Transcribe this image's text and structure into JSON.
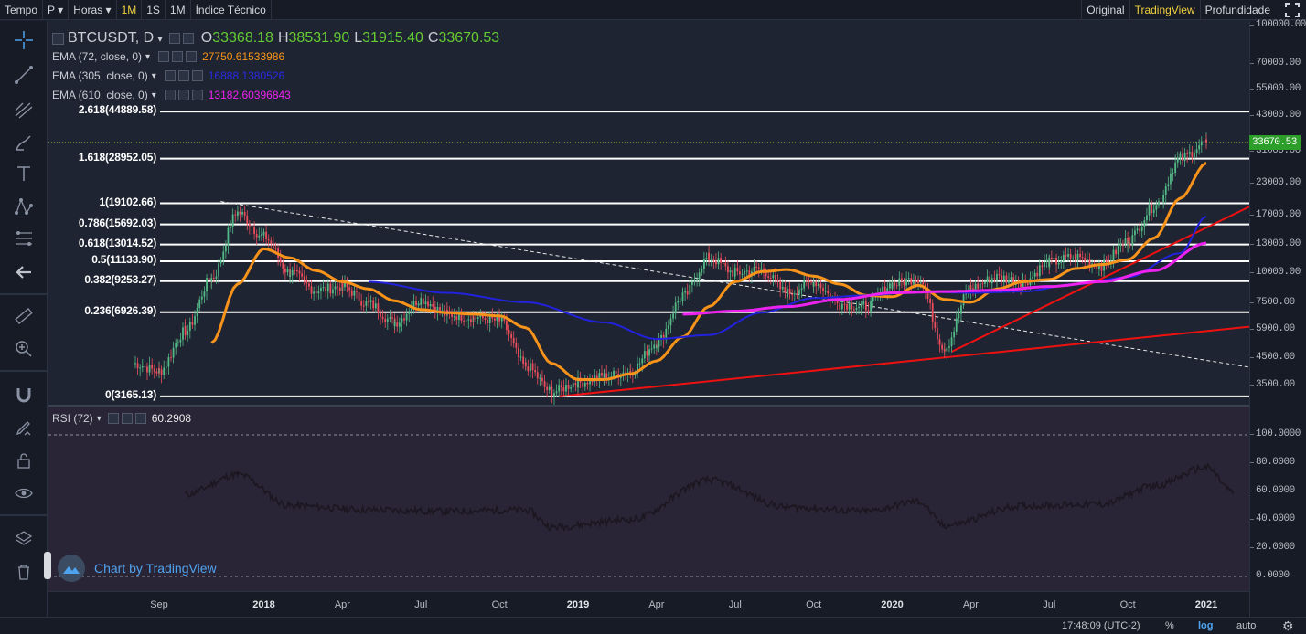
{
  "topbar": {
    "left": [
      {
        "label": "Tempo",
        "active": false
      },
      {
        "label": "P ▾",
        "active": false
      },
      {
        "label": "Horas ▾",
        "active": false
      },
      {
        "label": "1M",
        "active": true
      },
      {
        "label": "1S",
        "active": false
      },
      {
        "label": "1M",
        "active": false
      },
      {
        "label": "Índice Técnico",
        "active": false
      }
    ],
    "right": [
      {
        "label": "Original",
        "active": false
      },
      {
        "label": "TradingView",
        "active": true
      },
      {
        "label": "Profundidade",
        "active": false
      }
    ]
  },
  "legend": {
    "symbol": "BTCUSDT, D",
    "ohlc": {
      "o_label": "O",
      "o": "33368.18",
      "h_label": "H",
      "h": "38531.90",
      "l_label": "L",
      "l": "31915.40",
      "c_label": "C",
      "c": "33670.53"
    },
    "ema72": {
      "name": "EMA (72, close, 0)",
      "value": "27750.61533986",
      "color": "#f7931a"
    },
    "ema305": {
      "name": "EMA (305, close, 0)",
      "value": "16888.1380526",
      "color": "#2222dd"
    },
    "ema610": {
      "name": "EMA (610, close, 0)",
      "value": "13182.60396843",
      "color": "#ee22ee"
    },
    "rsi": {
      "name": "RSI (72)",
      "value": "60.2908"
    }
  },
  "fib_levels": [
    {
      "label": "2.618(44889.58)",
      "price": 44889.58
    },
    {
      "label": "1.618(28952.05)",
      "price": 28952.05
    },
    {
      "label": "1(19102.66)",
      "price": 19102.66
    },
    {
      "label": "0.786(15692.03)",
      "price": 15692.03
    },
    {
      "label": "0.618(13014.52)",
      "price": 13014.52
    },
    {
      "label": "0.5(11133.90)",
      "price": 11133.9
    },
    {
      "label": "0.382(9253.27)",
      "price": 9253.27
    },
    {
      "label": "0.236(6926.39)",
      "price": 6926.39
    },
    {
      "label": "0(3165.13)",
      "price": 3165.13
    }
  ],
  "y_axis_price": [
    "100000.00",
    "70000.00",
    "55000.00",
    "43000.00",
    "31000.00",
    "23000.00",
    "17000.00",
    "13000.00",
    "10000.00",
    "7500.00",
    "5900.00",
    "4500.00",
    "3500.00"
  ],
  "y_axis_price_values": [
    100000,
    70000,
    55000,
    43000,
    31000,
    23000,
    17000,
    13000,
    10000,
    7500,
    5900,
    4500,
    3500
  ],
  "current_price": {
    "label": "33670.53",
    "value": 33670.53,
    "color": "#2e9e2a"
  },
  "y_axis_rsi": [
    "100.0000",
    "80.0000",
    "60.0000",
    "40.0000",
    "20.0000",
    "0.0000"
  ],
  "y_axis_rsi_values": [
    100,
    80,
    60,
    40,
    20,
    0
  ],
  "x_axis": [
    {
      "label": "Sep",
      "bold": false
    },
    {
      "label": "2018",
      "bold": true
    },
    {
      "label": "Apr",
      "bold": false
    },
    {
      "label": "Jul",
      "bold": false
    },
    {
      "label": "Oct",
      "bold": false
    },
    {
      "label": "2019",
      "bold": true
    },
    {
      "label": "Apr",
      "bold": false
    },
    {
      "label": "Jul",
      "bold": false
    },
    {
      "label": "Oct",
      "bold": false
    },
    {
      "label": "2020",
      "bold": true
    },
    {
      "label": "Apr",
      "bold": false
    },
    {
      "label": "Jul",
      "bold": false
    },
    {
      "label": "Oct",
      "bold": false
    },
    {
      "label": "2021",
      "bold": true
    }
  ],
  "bottombar": {
    "time": "17:48:09 (UTC-2)",
    "percent": "%",
    "log": "log",
    "auto": "auto"
  },
  "watermark": "Chart by TradingView",
  "chart_data": {
    "type": "line",
    "title": "BTCUSDT, D",
    "scale": "log",
    "ylim": [
      3000,
      110000
    ],
    "series": [
      {
        "name": "BTCUSDT",
        "x": [
          "2017-08",
          "2017-09",
          "2017-10",
          "2017-11",
          "2017-12",
          "2018-01",
          "2018-02",
          "2018-03",
          "2018-04",
          "2018-05",
          "2018-06",
          "2018-07",
          "2018-08",
          "2018-09",
          "2018-10",
          "2018-11",
          "2018-12",
          "2019-01",
          "2019-02",
          "2019-03",
          "2019-04",
          "2019-05",
          "2019-06",
          "2019-07",
          "2019-08",
          "2019-09",
          "2019-10",
          "2019-11",
          "2019-12",
          "2020-01",
          "2020-02",
          "2020-03",
          "2020-04",
          "2020-05",
          "2020-06",
          "2020-07",
          "2020-08",
          "2020-09",
          "2020-10",
          "2020-11",
          "2020-12",
          "2021-01"
        ],
        "values": [
          4300,
          4000,
          5800,
          9500,
          17500,
          14000,
          10000,
          8500,
          8800,
          7500,
          6300,
          7800,
          6800,
          6600,
          6400,
          4200,
          3300,
          3600,
          3800,
          4000,
          5200,
          8000,
          11500,
          10000,
          10300,
          8300,
          9200,
          7500,
          7300,
          9000,
          9500,
          5000,
          8700,
          9600,
          9200,
          11000,
          11600,
          10700,
          13500,
          18500,
          28900,
          33670
        ]
      },
      {
        "name": "EMA (72, close, 0)",
        "color": "#f7931a",
        "x": [
          "2017-11",
          "2017-12",
          "2018-01",
          "2018-02",
          "2018-03",
          "2018-04",
          "2018-05",
          "2018-06",
          "2018-07",
          "2018-08",
          "2018-09",
          "2018-10",
          "2018-11",
          "2018-12",
          "2019-01",
          "2019-02",
          "2019-03",
          "2019-04",
          "2019-05",
          "2019-06",
          "2019-07",
          "2019-08",
          "2019-09",
          "2019-10",
          "2019-11",
          "2019-12",
          "2020-01",
          "2020-02",
          "2020-03",
          "2020-04",
          "2020-05",
          "2020-06",
          "2020-07",
          "2020-08",
          "2020-09",
          "2020-10",
          "2020-11",
          "2020-12",
          "2021-01"
        ],
        "values": [
          5200,
          9000,
          12500,
          11500,
          10200,
          9200,
          8600,
          7700,
          7100,
          6900,
          6800,
          6700,
          6000,
          4300,
          3700,
          3700,
          3900,
          4400,
          5500,
          7300,
          9200,
          10100,
          10300,
          9700,
          9000,
          8100,
          8000,
          8900,
          7800,
          7600,
          8600,
          9200,
          9400,
          10400,
          10800,
          11300,
          13800,
          20000,
          27750
        ]
      },
      {
        "name": "EMA (305, close, 0)",
        "color": "#2222dd",
        "x": [
          "2018-05",
          "2018-08",
          "2018-11",
          "2019-02",
          "2019-04",
          "2019-06",
          "2019-08",
          "2019-10",
          "2019-12",
          "2020-02",
          "2020-04",
          "2020-06",
          "2020-08",
          "2020-10",
          "2020-12",
          "2021-01"
        ],
        "values": [
          9200,
          8300,
          7600,
          6300,
          5400,
          5600,
          6900,
          7900,
          8100,
          8400,
          8300,
          8400,
          9000,
          9600,
          12000,
          16888
        ]
      },
      {
        "name": "EMA (610, close, 0)",
        "color": "#ee22ee",
        "x": [
          "2019-05",
          "2019-07",
          "2019-09",
          "2019-11",
          "2020-01",
          "2020-03",
          "2020-05",
          "2020-07",
          "2020-09",
          "2020-11",
          "2021-01"
        ],
        "values": [
          6800,
          7000,
          7300,
          7800,
          8300,
          8400,
          8500,
          8800,
          9200,
          10200,
          13182
        ]
      },
      {
        "name": "RSI (72)",
        "x": [
          "2017-10",
          "2017-12",
          "2018-02",
          "2018-05",
          "2018-08",
          "2018-11",
          "2018-12",
          "2019-03",
          "2019-06",
          "2019-09",
          "2019-12",
          "2020-02",
          "2020-03",
          "2020-06",
          "2020-09",
          "2020-11",
          "2021-01",
          "2021-02"
        ],
        "values": [
          58,
          72,
          50,
          47,
          46,
          47,
          35,
          40,
          68,
          49,
          46,
          53,
          36,
          50,
          51,
          64,
          77,
          60.29
        ]
      }
    ],
    "annotations": [
      "Fibonacci retracement levels",
      "red trendlines",
      "dashed descending trendline"
    ],
    "grid": false,
    "legend": "top-left"
  }
}
